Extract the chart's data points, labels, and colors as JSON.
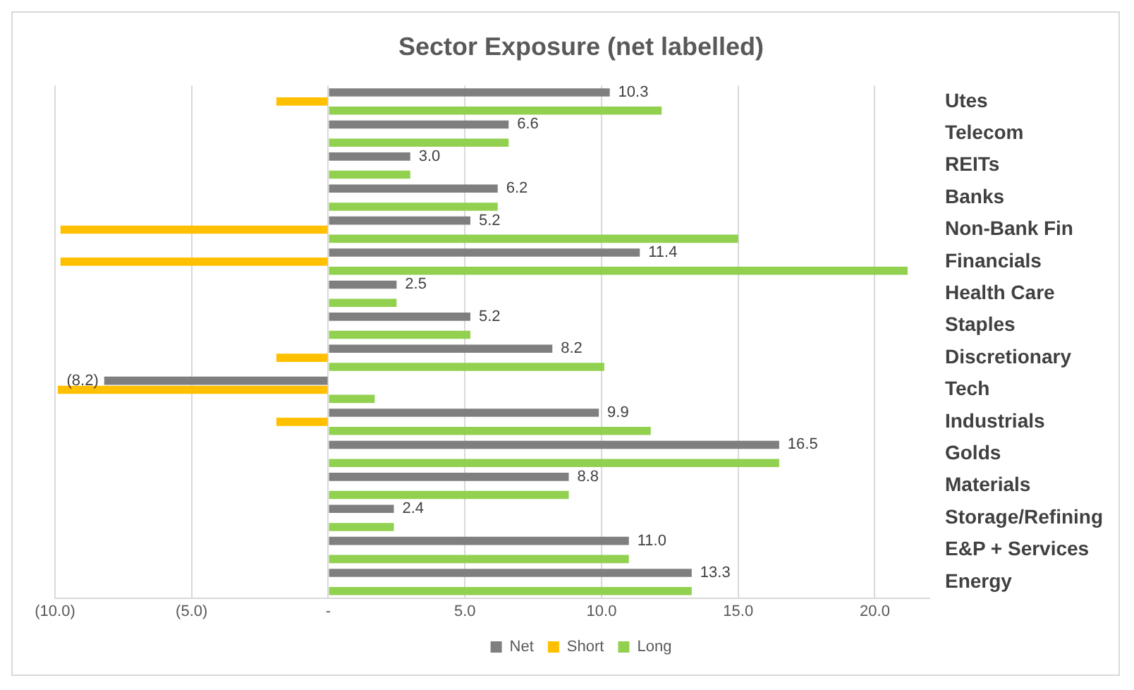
{
  "chart_data": {
    "type": "bar",
    "orientation": "horizontal",
    "title": "Sector Exposure (net labelled)",
    "categories": [
      "Utes",
      "Telecom",
      "REITs",
      "Banks",
      "Non-Bank Fin",
      "Financials",
      "Health Care",
      "Staples",
      "Discretionary",
      "Tech",
      "Industrials",
      "Golds",
      "Materials",
      "Storage/Refining",
      "E&P + Services",
      "Energy"
    ],
    "series": [
      {
        "name": "Net",
        "color": "#7f7f7f",
        "values": [
          10.3,
          6.6,
          3.0,
          6.2,
          5.2,
          11.4,
          2.5,
          5.2,
          8.2,
          -8.2,
          9.9,
          16.5,
          8.8,
          2.4,
          11.0,
          13.3
        ],
        "value_labels": [
          "10.3",
          "6.6",
          "3.0",
          "6.2",
          "5.2",
          "11.4",
          "2.5",
          "5.2",
          "8.2",
          "(8.2)",
          "9.9",
          "16.5",
          "8.8",
          "2.4",
          "11.0",
          "13.3"
        ]
      },
      {
        "name": "Short",
        "color": "#ffc000",
        "values": [
          -1.9,
          null,
          null,
          null,
          -9.8,
          -9.8,
          null,
          null,
          -1.9,
          -9.9,
          -1.9,
          null,
          null,
          null,
          null,
          null
        ]
      },
      {
        "name": "Long",
        "color": "#92d050",
        "values": [
          12.2,
          6.6,
          3.0,
          6.2,
          15.0,
          21.2,
          2.5,
          5.2,
          10.1,
          1.7,
          11.8,
          16.5,
          8.8,
          2.4,
          11.0,
          13.3
        ]
      }
    ],
    "xlim": [
      -10,
      22
    ],
    "xticks": [
      {
        "value": -10,
        "label": "(10.0)"
      },
      {
        "value": -5,
        "label": "(5.0)"
      },
      {
        "value": 0,
        "label": "-"
      },
      {
        "value": 5,
        "label": "5.0"
      },
      {
        "value": 10,
        "label": "10.0"
      },
      {
        "value": 15,
        "label": "15.0"
      },
      {
        "value": 20,
        "label": "20.0"
      }
    ],
    "grid": "x",
    "legend": "bottom"
  }
}
